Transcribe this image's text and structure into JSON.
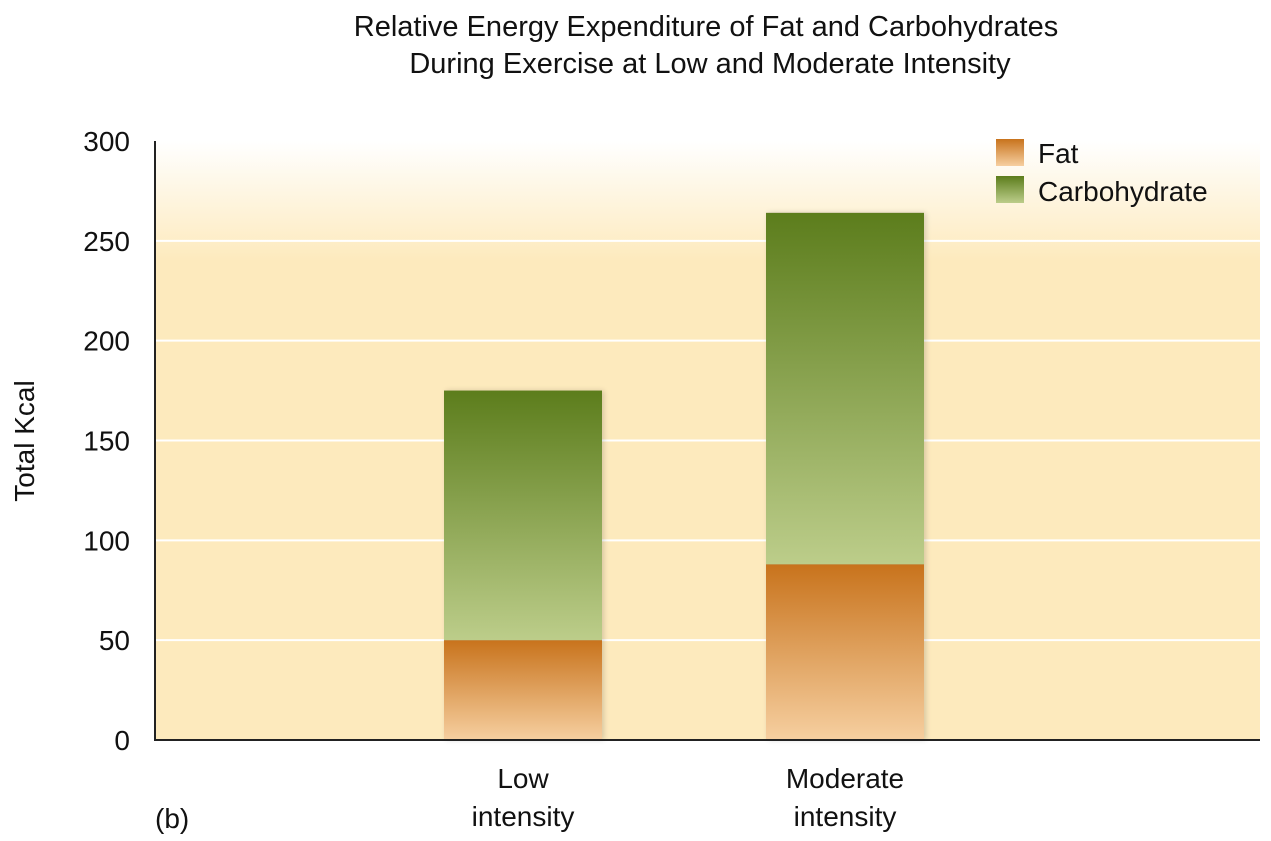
{
  "chart_data": {
    "type": "bar",
    "stacked": true,
    "title": "Relative Energy Expenditure of Fat and Carbohydrates",
    "subtitle": "During Exercise at Low and Moderate Intensity",
    "xlabel": "",
    "ylabel": "Total Kcal",
    "panel_label": "(b)",
    "categories": [
      [
        "Low",
        "intensity"
      ],
      [
        "Moderate",
        "intensity"
      ]
    ],
    "ylim": [
      0,
      300
    ],
    "yticks": [
      "0",
      "50",
      "100",
      "150",
      "200",
      "250",
      "300"
    ],
    "grid": true,
    "legend_position": "top-right",
    "series": [
      {
        "name": "Fat",
        "values": [
          50,
          88
        ],
        "color_dark": "#c8731c",
        "color_light": "#f6cfa0"
      },
      {
        "name": "Carbohydrate",
        "values": [
          125,
          176
        ],
        "color_dark": "#5c7d1c",
        "color_light": "#bccd8a"
      }
    ],
    "background_color_top": "#ffffff",
    "background_color": "#fdeabd"
  }
}
